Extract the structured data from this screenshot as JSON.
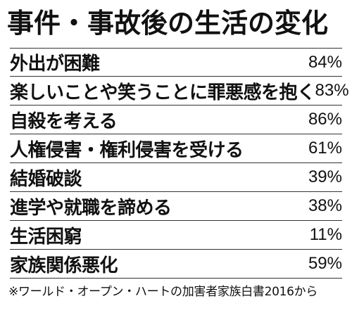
{
  "title": "事件・事故後の生活の変化",
  "rows": [
    {
      "label": "外出が困難",
      "value": "84%"
    },
    {
      "label": "楽しいことや笑うことに罪悪感を抱く",
      "value": "83%"
    },
    {
      "label": "自殺を考える",
      "value": "86%"
    },
    {
      "label": "人権侵害・権利侵害を受ける",
      "value": "61%"
    },
    {
      "label": "結婚破談",
      "value": "39%"
    },
    {
      "label": "進学や就職を諦める",
      "value": "38%"
    },
    {
      "label": "生活困窮",
      "value": "11%"
    },
    {
      "label": "家族関係悪化",
      "value": "59%"
    }
  ],
  "footnote": "※ワールド・オープン・ハートの加害者家族白書2016から"
}
